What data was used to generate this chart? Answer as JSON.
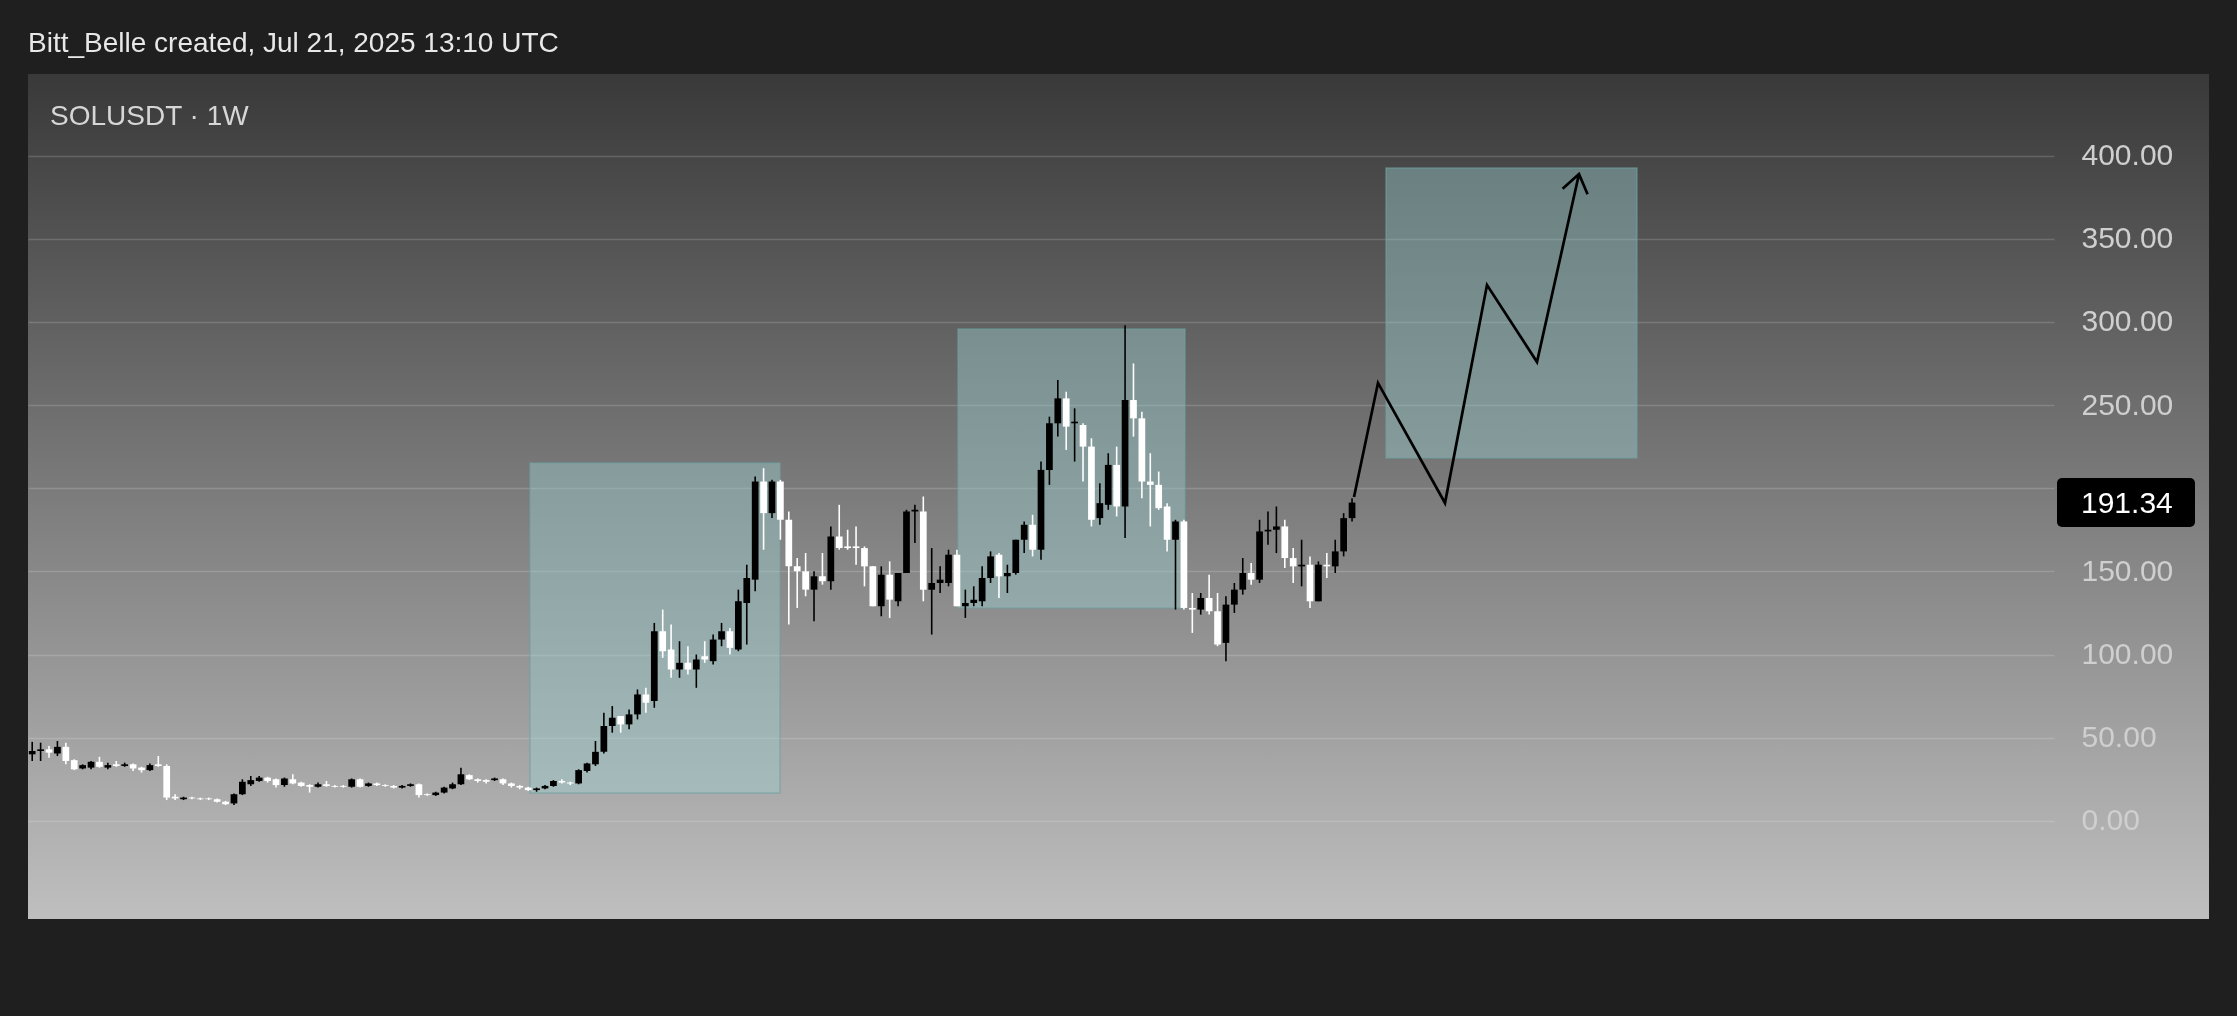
{
  "chart_data": {
    "type": "candlestick",
    "title": "SOLUSDT · 1W",
    "annotations": [
      "Bitt_Belle created, Jul 21, 2025 13:10 UTC",
      "191.34"
    ],
    "categories": [
      null,
      null,
      null,
      null,
      null,
      null,
      null,
      null,
      null,
      null,
      null,
      null,
      null,
      null,
      null,
      null,
      null,
      null,
      null,
      null,
      null,
      null,
      null,
      null,
      null,
      null,
      null,
      null,
      null,
      null,
      null,
      null,
      null,
      null,
      null,
      null,
      null,
      null,
      null,
      null,
      null,
      null,
      null,
      null,
      null,
      null,
      null,
      null,
      null,
      null,
      null,
      null,
      null,
      null,
      null,
      null,
      null,
      null,
      null,
      null,
      null,
      null,
      null,
      null,
      null,
      null,
      null,
      null,
      null,
      null,
      null,
      null,
      null,
      null,
      null,
      null,
      null,
      null,
      null,
      null,
      null,
      null,
      null,
      null,
      null,
      null,
      null,
      null,
      null,
      null,
      null,
      null,
      null,
      null,
      null,
      null,
      null,
      null,
      null,
      null,
      null,
      null,
      null,
      null,
      null,
      null,
      null,
      null,
      null,
      null,
      null,
      null,
      null,
      null,
      null,
      null,
      null,
      null,
      null,
      null,
      null,
      null,
      null,
      null,
      null,
      null,
      null,
      null,
      null,
      null,
      null,
      null,
      null,
      null,
      null,
      null,
      null,
      null,
      null,
      null,
      null,
      null,
      null,
      null,
      null,
      null,
      null,
      null,
      null,
      null,
      null,
      null,
      null,
      null,
      null,
      null,
      null,
      null,
      null,
      null,
      null,
      null,
      null,
      null,
      null,
      null,
      null,
      null,
      null,
      null,
      null,
      null,
      null,
      null,
      null,
      null,
      null,
      null,
      null,
      null,
      null,
      null,
      null,
      null,
      null,
      null,
      null,
      null,
      null,
      null,
      null,
      null,
      null,
      null,
      null,
      null,
      null,
      null,
      null,
      null,
      null,
      null,
      null,
      null,
      null,
      null,
      null,
      null,
      null,
      null,
      null,
      null,
      null,
      null,
      null,
      null,
      null,
      null,
      null,
      null,
      null,
      null,
      null,
      null,
      null,
      null,
      null,
      null,
      null,
      null,
      null,
      null,
      null,
      null,
      null,
      null,
      null,
      null,
      null,
      null,
      null
    ],
    "ohlc": [
      [
        40,
        47.5,
        36,
        42
      ],
      [
        42,
        47,
        36,
        43
      ],
      [
        43,
        45,
        38,
        41
      ],
      [
        40.5,
        48,
        39,
        44.5
      ],
      [
        44.5,
        47,
        34,
        36
      ],
      [
        36.5,
        37,
        30.5,
        31
      ],
      [
        31.5,
        34,
        31,
        33.5
      ],
      [
        32,
        36,
        31,
        35.5
      ],
      [
        35.5,
        38.5,
        32,
        32.5
      ],
      [
        32,
        35,
        31,
        33.5
      ],
      [
        34,
        36,
        32.5,
        33
      ],
      [
        33,
        35,
        32.5,
        34
      ],
      [
        34,
        34.5,
        30,
        31.5
      ],
      [
        32,
        32.5,
        29,
        30.5
      ],
      [
        30.5,
        34.5,
        30,
        33.5
      ],
      [
        34,
        39,
        32.5,
        33
      ],
      [
        33,
        34,
        12.5,
        14
      ],
      [
        14.5,
        16,
        12.5,
        13.5
      ],
      [
        13,
        14.5,
        12.5,
        14
      ],
      [
        14,
        14.5,
        13,
        13.5
      ],
      [
        13.5,
        14,
        12.5,
        13
      ],
      [
        13.5,
        14,
        12.5,
        13
      ],
      [
        13,
        13.5,
        11,
        11.5
      ],
      [
        11.5,
        12,
        9.5,
        10
      ],
      [
        10.5,
        16.5,
        9.5,
        16
      ],
      [
        16,
        25,
        15.5,
        23.5
      ],
      [
        22,
        27,
        21,
        24.5
      ],
      [
        24,
        27,
        23.5,
        26
      ],
      [
        26,
        26.5,
        23,
        24
      ],
      [
        25,
        25.5,
        20,
        21.5
      ],
      [
        21.5,
        26,
        20.5,
        25.5
      ],
      [
        25,
        28,
        22,
        22.5
      ],
      [
        23,
        23.5,
        20.5,
        21
      ],
      [
        21.5,
        22,
        17,
        20.5
      ],
      [
        20.5,
        23,
        20,
        22
      ],
      [
        22,
        24,
        20.5,
        21
      ],
      [
        21,
        21.5,
        20,
        20.5
      ],
      [
        21,
        21.5,
        20,
        20.5
      ],
      [
        20.5,
        25.5,
        20,
        25
      ],
      [
        25,
        25.5,
        20,
        20.5
      ],
      [
        21,
        23,
        20.5,
        22.5
      ],
      [
        22.5,
        23,
        21,
        21.5
      ],
      [
        21.5,
        22,
        20.5,
        21
      ],
      [
        21,
        21.5,
        19.5,
        20
      ],
      [
        20,
        21.5,
        19.5,
        21
      ],
      [
        21,
        22.5,
        20.5,
        22
      ],
      [
        22,
        22.5,
        14,
        15.5
      ],
      [
        16,
        16.5,
        15,
        15.5
      ],
      [
        15.5,
        17.5,
        15,
        17
      ],
      [
        17,
        20.5,
        16.5,
        20
      ],
      [
        19.5,
        23,
        19,
        22
      ],
      [
        22,
        32,
        21.5,
        28
      ],
      [
        27.5,
        28,
        24.5,
        25
      ],
      [
        25,
        25.5,
        23,
        24
      ],
      [
        24.5,
        25,
        22.5,
        23.5
      ],
      [
        24.5,
        26,
        24,
        25.5
      ],
      [
        25,
        25.5,
        21.5,
        22.5
      ],
      [
        22.5,
        23,
        20,
        21
      ],
      [
        21,
        21.5,
        19,
        20
      ],
      [
        20,
        20.5,
        18,
        18.5
      ],
      [
        18.5,
        20,
        17.5,
        19.5
      ],
      [
        19.5,
        21.5,
        19,
        21
      ],
      [
        21,
        24.5,
        20.5,
        24
      ],
      [
        24,
        25,
        22.5,
        23
      ],
      [
        23,
        23.5,
        21.5,
        22.5
      ],
      [
        22.5,
        31,
        22,
        30.5
      ],
      [
        30,
        35,
        29,
        34.5
      ],
      [
        34,
        48,
        33,
        41.5
      ],
      [
        41.5,
        65,
        40.5,
        57
      ],
      [
        57,
        69,
        53,
        62
      ],
      [
        63,
        63,
        53,
        58
      ],
      [
        58,
        67,
        55,
        64
      ],
      [
        64,
        79,
        61,
        76
      ],
      [
        76,
        80,
        65,
        71
      ],
      [
        72,
        119,
        68,
        114
      ],
      [
        114,
        127,
        98,
        102
      ],
      [
        103,
        118,
        86,
        91
      ],
      [
        91,
        108,
        86,
        95
      ],
      [
        95,
        105,
        88,
        91
      ],
      [
        91,
        100,
        80,
        97
      ],
      [
        99,
        108,
        95,
        97
      ],
      [
        96,
        112,
        94,
        109
      ],
      [
        109,
        119,
        105,
        114
      ],
      [
        114,
        116,
        100,
        104
      ],
      [
        103,
        139,
        102,
        132
      ],
      [
        131,
        154,
        106,
        146
      ],
      [
        145,
        207,
        138,
        204
      ],
      [
        204,
        212,
        163,
        185
      ],
      [
        185,
        205,
        182,
        204
      ],
      [
        204,
        205,
        169,
        181
      ],
      [
        181,
        186,
        118,
        153
      ],
      [
        153,
        158,
        128,
        150
      ],
      [
        150,
        161,
        135,
        139
      ],
      [
        139,
        150,
        120,
        147
      ],
      [
        147,
        161,
        142,
        144
      ],
      [
        144,
        177,
        139,
        171
      ],
      [
        171,
        190,
        163,
        164
      ],
      [
        165,
        175,
        163,
        164
      ],
      [
        165,
        177,
        154,
        164
      ],
      [
        164,
        165,
        141,
        153
      ],
      [
        153,
        153,
        129,
        129
      ],
      [
        129,
        153,
        123,
        148
      ],
      [
        148,
        156,
        122,
        133
      ],
      [
        132,
        149,
        129,
        149
      ],
      [
        149,
        187,
        149,
        186
      ],
      [
        186,
        190,
        167,
        187
      ],
      [
        186,
        195,
        132,
        139
      ],
      [
        139,
        164,
        112,
        143
      ],
      [
        143,
        153,
        137,
        145
      ],
      [
        143,
        163,
        141,
        160
      ],
      [
        160,
        163,
        129,
        129
      ],
      [
        129,
        139,
        122,
        131
      ],
      [
        131,
        141,
        129,
        133
      ],
      [
        132,
        153,
        129,
        146
      ],
      [
        146,
        162,
        143,
        159
      ],
      [
        160,
        161,
        134,
        147
      ],
      [
        147,
        154,
        137,
        149
      ],
      [
        149,
        169,
        148,
        169
      ],
      [
        169,
        180,
        161,
        178
      ],
      [
        178,
        184,
        159,
        163
      ],
      [
        163,
        216,
        157,
        211
      ],
      [
        211,
        243,
        202,
        239
      ],
      [
        239,
        265,
        231,
        254
      ],
      [
        254,
        258,
        223,
        237
      ],
      [
        239,
        248,
        216,
        240
      ],
      [
        238,
        239,
        204,
        225
      ],
      [
        225,
        230,
        177,
        181
      ],
      [
        182,
        203,
        178,
        191
      ],
      [
        190,
        221,
        187,
        214
      ],
      [
        214,
        225,
        183,
        189
      ],
      [
        189,
        298,
        170,
        253
      ],
      [
        253,
        275,
        231,
        242
      ],
      [
        242,
        246,
        194,
        204
      ],
      [
        204,
        221,
        177,
        202
      ],
      [
        202,
        210,
        187,
        188
      ],
      [
        189,
        191,
        162,
        169
      ],
      [
        169,
        181,
        127,
        180
      ],
      [
        180,
        181,
        127,
        128
      ],
      [
        128,
        137,
        113,
        127
      ],
      [
        127,
        137,
        124,
        134
      ],
      [
        134,
        148,
        124,
        126
      ],
      [
        126,
        137,
        105,
        106
      ],
      [
        107,
        135,
        96,
        130
      ],
      [
        130,
        143,
        125,
        139
      ],
      [
        139,
        158,
        136,
        149
      ],
      [
        149,
        155,
        142,
        145
      ],
      [
        145,
        181,
        143,
        174
      ],
      [
        174,
        186,
        166,
        175
      ],
      [
        175,
        189,
        161,
        177
      ],
      [
        177,
        181,
        152,
        158
      ],
      [
        158,
        164,
        143,
        153
      ],
      [
        153,
        169,
        141,
        154
      ],
      [
        154,
        159,
        128,
        132
      ],
      [
        132,
        156,
        132,
        154
      ],
      [
        154,
        161,
        146,
        153
      ],
      [
        153,
        169,
        149,
        162
      ],
      [
        162,
        185,
        159,
        182
      ],
      [
        182,
        194,
        180,
        191.34
      ],
      null,
      null,
      null,
      null,
      null,
      null,
      null,
      null,
      null,
      null,
      null,
      null,
      null,
      null,
      null,
      null,
      null,
      null,
      null,
      null,
      null,
      null,
      null,
      null,
      null,
      null,
      null,
      null,
      null,
      null,
      null,
      null,
      null,
      null,
      null,
      null,
      null,
      null,
      null,
      null,
      null,
      null,
      null,
      null,
      null,
      null,
      null,
      null,
      null,
      null,
      null,
      null,
      null,
      null,
      null,
      null,
      null,
      null,
      null,
      null,
      null,
      null,
      null,
      null,
      null,
      null,
      null,
      null,
      null,
      null,
      null,
      null,
      null,
      null,
      null,
      null,
      null,
      null,
      null,
      null,
      null,
      null,
      null
    ],
    "colors": [
      "#000000",
      "#000000",
      "#ffffff",
      "#000000",
      "#ffffff",
      "#ffffff",
      "#000000",
      "#000000",
      "#ffffff",
      "#000000",
      "#ffffff",
      "#000000",
      "#ffffff",
      "#ffffff",
      "#000000",
      "#ffffff",
      "#ffffff",
      "#ffffff",
      "#000000",
      "#ffffff",
      "#ffffff",
      "#ffffff",
      "#ffffff",
      "#ffffff",
      "#000000",
      "#000000",
      "#000000",
      "#000000",
      "#ffffff",
      "#ffffff",
      "#000000",
      "#ffffff",
      "#ffffff",
      "#ffffff",
      "#000000",
      "#ffffff",
      "#ffffff",
      "#ffffff",
      "#000000",
      "#ffffff",
      "#000000",
      "#ffffff",
      "#ffffff",
      "#ffffff",
      "#000000",
      "#000000",
      "#ffffff",
      "#ffffff",
      "#000000",
      "#000000",
      "#000000",
      "#000000",
      "#ffffff",
      "#ffffff",
      "#ffffff",
      "#000000",
      "#ffffff",
      "#ffffff",
      "#ffffff",
      "#ffffff",
      "#000000",
      "#000000",
      "#000000",
      "#ffffff",
      "#ffffff",
      "#000000",
      "#000000",
      "#000000",
      "#000000",
      "#000000",
      "#ffffff",
      "#000000",
      "#000000",
      "#ffffff",
      "#000000",
      "#ffffff",
      "#ffffff",
      "#000000",
      "#ffffff",
      "#000000",
      "#ffffff",
      "#000000",
      "#000000",
      "#ffffff",
      "#000000",
      "#000000",
      "#000000",
      "#ffffff",
      "#000000",
      "#ffffff",
      "#ffffff",
      "#ffffff",
      "#ffffff",
      "#000000",
      "#ffffff",
      "#000000",
      "#ffffff",
      "#ffffff",
      "#ffffff",
      "#ffffff",
      "#ffffff",
      "#000000",
      "#ffffff",
      "#000000",
      "#000000",
      "#000000",
      "#ffffff",
      "#000000",
      "#000000",
      "#000000",
      "#ffffff",
      "#000000",
      "#000000",
      "#000000",
      "#000000",
      "#ffffff",
      "#000000",
      "#000000",
      "#000000",
      "#ffffff",
      "#000000",
      "#000000",
      "#000000",
      "#ffffff",
      "#000000",
      "#ffffff",
      "#ffffff",
      "#000000",
      "#000000",
      "#ffffff",
      "#000000",
      "#ffffff",
      "#ffffff",
      "#ffffff",
      "#ffffff",
      "#ffffff",
      "#000000",
      "#ffffff",
      "#ffffff",
      "#000000",
      "#ffffff",
      "#ffffff",
      "#000000",
      "#000000",
      "#000000",
      "#ffffff",
      "#000000",
      "#000000",
      "#000000",
      "#ffffff",
      "#ffffff",
      "#000000",
      "#ffffff",
      "#000000",
      "#ffffff",
      "#000000",
      "#000000",
      "#000000",
      null,
      null,
      null,
      null,
      null,
      null,
      null,
      null,
      null,
      null,
      null,
      null,
      null,
      null,
      null,
      null,
      null,
      null,
      null,
      null,
      null,
      null,
      null,
      null,
      null,
      null,
      null,
      null,
      null,
      null,
      null,
      null,
      null,
      null,
      null,
      null,
      null,
      null,
      null,
      null,
      null,
      null,
      null,
      null,
      null,
      null,
      null,
      null,
      null,
      null,
      null,
      null,
      null,
      null,
      null,
      null,
      null,
      null,
      null,
      null,
      null,
      null,
      null,
      null,
      null,
      null,
      null,
      null,
      null,
      null,
      null,
      null,
      null,
      null,
      null,
      null,
      null,
      null,
      null,
      null,
      null,
      null,
      null
    ],
    "ylim": [
      -59,
      449
    ],
    "yticks": [
      {
        "value": 0,
        "label": "0.00"
      },
      {
        "value": 50,
        "label": "50.00"
      },
      {
        "value": 100,
        "label": "100.00"
      },
      {
        "value": 150,
        "label": "150.00"
      },
      {
        "value": 200,
        "label": null
      },
      {
        "value": 250,
        "label": "250.00"
      },
      {
        "value": 300,
        "label": "300.00"
      },
      {
        "value": 350,
        "label": "350.00"
      },
      {
        "value": 400,
        "label": "400.00"
      }
    ],
    "grid": "y",
    "tick_labels": "y"
  }
}
